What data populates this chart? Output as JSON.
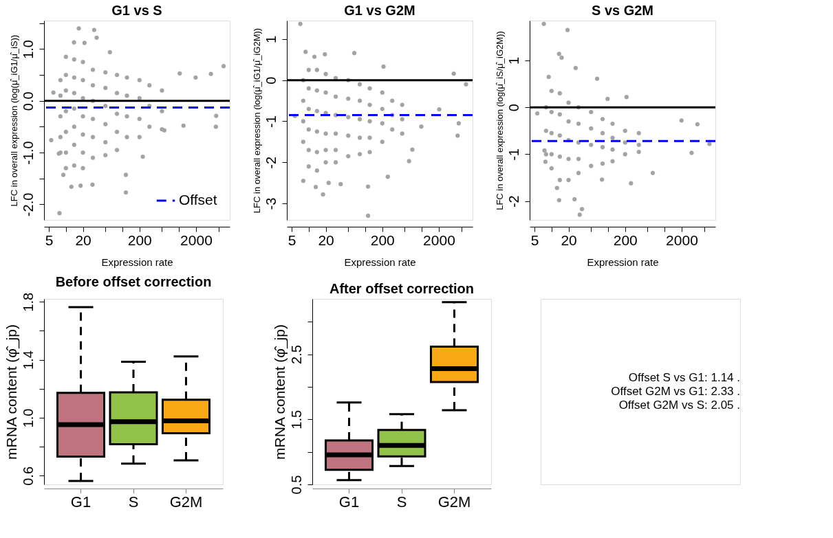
{
  "chart_data": [
    {
      "type": "scatter",
      "title": "G1 vs S",
      "xlabel": "Expression rate",
      "ylabel": "LFC in overall expression (log(μ̂_iG1/μ̂_iS))",
      "log": "x",
      "marker": "circle",
      "color": "#a3a3a3",
      "legend": "bottom right",
      "xlim": [
        4.1,
        7900
      ],
      "xticks": [
        5,
        {
          "value": 10,
          "label": null
        },
        20,
        {
          "value": 50,
          "label": null
        },
        {
          "value": 100,
          "label": null
        },
        200,
        {
          "value": 500,
          "label": null
        },
        {
          "value": 1000,
          "label": null
        },
        2000,
        {
          "value": 5000,
          "label": null
        }
      ],
      "ylim": [
        -2.3,
        1.55
      ],
      "yticks": [
        {
          "value": -2,
          "label": "-2.0"
        },
        {
          "value": -1.5,
          "label": null
        },
        {
          "value": -1,
          "label": "-1.0"
        },
        {
          "value": -0.5,
          "label": null
        },
        {
          "value": 0,
          "label": "0.0"
        },
        {
          "value": 0.5,
          "label": null
        },
        {
          "value": 1,
          "label": "1.0"
        },
        {
          "value": 1.5,
          "label": null
        }
      ],
      "ref_lines": [
        {
          "axis": "y",
          "value": 0,
          "color": "#000000",
          "line_style": "solid"
        },
        {
          "axis": "y",
          "value": -0.13,
          "color": "#0000ff",
          "line_style": "dashed",
          "label": "Offset"
        }
      ],
      "x": [
        8,
        8,
        8,
        8,
        8,
        10,
        10,
        10,
        10,
        10,
        10,
        10,
        14,
        14,
        14,
        14,
        14,
        14,
        14,
        20,
        20,
        20,
        20,
        20,
        20,
        20,
        30,
        30,
        30,
        30,
        30,
        30,
        50,
        50,
        50,
        50,
        50,
        50,
        80,
        80,
        80,
        80,
        80,
        120,
        120,
        120,
        120,
        200,
        200,
        200,
        200,
        300,
        300,
        300,
        500,
        500,
        500,
        16.9,
        31.6,
        35,
        13.9,
        21.3,
        60,
        6150,
        3670,
        1970,
        1030,
        6,
        5.5,
        7.7,
        12.5,
        18.2,
        29.5,
        115,
        115,
        229,
        4500,
        4550,
        1200,
        550,
        9,
        7.5
      ],
      "values": [
        0.4,
        0.1,
        -0.3,
        -0.7,
        -1.0,
        0.85,
        0.5,
        0.2,
        -0.2,
        -0.6,
        -1.0,
        -1.3,
        0.8,
        0.45,
        0.15,
        -0.15,
        -0.5,
        -0.85,
        -1.25,
        0.75,
        0.4,
        0.05,
        -0.3,
        -0.65,
        -1.0,
        -1.3,
        0.6,
        0.3,
        0.0,
        -0.35,
        -0.7,
        -1.1,
        0.55,
        0.25,
        -0.1,
        -0.45,
        -0.8,
        -1.05,
        0.5,
        0.15,
        -0.25,
        -0.6,
        -0.95,
        0.45,
        0.1,
        -0.3,
        -0.7,
        0.4,
        0.05,
        -0.35,
        -0.7,
        0.3,
        -0.1,
        -0.5,
        0.2,
        -0.2,
        -0.55,
        1.4,
        1.37,
        1.22,
        1.13,
        1.12,
        0.94,
        0.67,
        0.52,
        0.45,
        0.53,
        0.16,
        -0.76,
        -2.17,
        -1.66,
        -1.64,
        -1.62,
        -1.77,
        -1.43,
        -1.08,
        -0.5,
        -0.29,
        -0.48,
        -0.57,
        -1.43,
        -1.02
      ]
    },
    {
      "type": "scatter",
      "title": "G1 vs G2M",
      "xlabel": "Expression rate",
      "ylabel": "LFC in overall expression (log(μ̂_iG1/μ̂_iG2M))",
      "log": "x",
      "marker": "circle",
      "color": "#a3a3a3",
      "xlim": [
        4.1,
        7900
      ],
      "xticks": [
        5,
        {
          "value": 10,
          "label": null
        },
        20,
        {
          "value": 50,
          "label": null
        },
        {
          "value": 100,
          "label": null
        },
        200,
        {
          "value": 500,
          "label": null
        },
        {
          "value": 1000,
          "label": null
        },
        2000,
        {
          "value": 5000,
          "label": null
        }
      ],
      "ylim": [
        -3.4,
        1.45
      ],
      "yticks": [
        -3,
        -2,
        -1,
        0,
        1
      ],
      "ref_lines": [
        {
          "axis": "y",
          "value": 0,
          "color": "#000000",
          "line_style": "solid"
        },
        {
          "axis": "y",
          "value": -0.85,
          "color": "#0000ff",
          "line_style": "dashed"
        }
      ],
      "x": [
        8,
        8,
        8,
        8,
        10,
        10,
        10,
        10,
        10,
        10,
        14,
        14,
        14,
        14,
        14,
        14,
        20,
        20,
        20,
        20,
        20,
        20,
        30,
        30,
        30,
        30,
        30,
        30,
        50,
        50,
        50,
        50,
        50,
        80,
        80,
        80,
        80,
        80,
        120,
        120,
        120,
        120,
        120,
        200,
        200,
        200,
        200,
        300,
        300,
        300,
        450,
        450,
        450,
        7.1,
        8.8,
        64,
        19.3,
        12.6,
        210,
        3670,
        6050,
        4500,
        4300,
        595,
        250,
        112,
        112,
        17.9,
        13.3,
        8.0,
        22.5,
        36.7,
        680,
        2030,
        980,
        5.7
      ],
      "values": [
        0.0,
        -0.5,
        -1.0,
        -1.5,
        0.25,
        -0.2,
        -0.7,
        -1.2,
        -1.7,
        -2.1,
        0.25,
        -0.25,
        -0.75,
        -1.25,
        -1.75,
        -2.2,
        0.15,
        -0.3,
        -0.8,
        -1.3,
        -1.7,
        -2.0,
        0.05,
        -0.4,
        -0.85,
        -1.3,
        -1.7,
        -2.0,
        0.0,
        -0.45,
        -0.9,
        -1.35,
        -1.85,
        -0.1,
        -0.5,
        -0.95,
        -1.4,
        -1.8,
        -0.2,
        -0.6,
        -1.0,
        -1.4,
        -1.75,
        -0.3,
        -0.7,
        -1.05,
        -1.5,
        -0.5,
        -0.85,
        -1.2,
        -0.6,
        -0.95,
        -1.3,
        1.37,
        0.69,
        0.66,
        0.63,
        0.57,
        0.33,
        0.16,
        -0.1,
        -1.05,
        -1.35,
        -1.97,
        -2.35,
        -2.59,
        -3.3,
        -2.78,
        -2.6,
        -2.45,
        -2.5,
        -2.53,
        -1.69,
        -0.71,
        -1.13,
        -0.87
      ]
    },
    {
      "type": "scatter",
      "title": "S vs G2M",
      "xlabel": "Expression rate",
      "ylabel": "LFC in overall expression (log(μ̂_iS/μ̂_iG2M))",
      "log": "x",
      "marker": "circle",
      "color": "#a3a3a3",
      "xlim": [
        4.1,
        7900
      ],
      "xticks": [
        5,
        {
          "value": 10,
          "label": null
        },
        20,
        {
          "value": 50,
          "label": null
        },
        {
          "value": 100,
          "label": null
        },
        200,
        {
          "value": 500,
          "label": null
        },
        {
          "value": 1000,
          "label": null
        },
        2000,
        {
          "value": 5000,
          "label": null
        }
      ],
      "ylim": [
        -2.4,
        1.85
      ],
      "yticks": [
        -2,
        -1,
        0,
        1
      ],
      "ref_lines": [
        {
          "axis": "y",
          "value": 0,
          "color": "#000000",
          "line_style": "solid"
        },
        {
          "axis": "y",
          "value": -0.72,
          "color": "#0000ff",
          "line_style": "dashed"
        }
      ],
      "x": [
        8,
        8,
        8,
        10,
        10,
        10,
        10,
        10,
        14,
        14,
        14,
        14,
        14,
        20,
        20,
        20,
        20,
        20,
        30,
        30,
        30,
        30,
        30,
        50,
        50,
        50,
        50,
        80,
        80,
        80,
        80,
        120,
        120,
        120,
        120,
        200,
        200,
        200,
        350,
        350,
        350,
        7.3,
        19.2,
        13.6,
        15.1,
        26.7,
        64,
        8.9,
        212,
        98,
        3800,
        1990,
        6200,
        3000,
        617,
        254,
        31.5,
        34.5,
        25.5,
        13.6,
        12.5,
        7.8,
        5.6,
        7.5,
        78
      ],
      "values": [
        0.0,
        -0.5,
        -1.0,
        0.35,
        -0.1,
        -0.55,
        -1.0,
        -1.3,
        0.3,
        -0.15,
        -0.6,
        -1.05,
        -1.55,
        0.1,
        -0.3,
        -0.7,
        -1.1,
        -1.55,
        0.0,
        -0.35,
        -0.75,
        -1.1,
        -1.4,
        -0.1,
        -0.45,
        -0.8,
        -1.25,
        -0.25,
        -0.55,
        -0.85,
        -1.2,
        -0.35,
        -0.65,
        -0.9,
        -1.15,
        -0.5,
        -0.75,
        -1.0,
        -0.55,
        -0.8,
        -0.95,
        1.78,
        1.65,
        1.14,
        1.06,
        0.84,
        0.61,
        0.65,
        0.22,
        0.18,
        -0.36,
        -0.28,
        -0.78,
        -0.97,
        -1.4,
        -1.62,
        -2.29,
        -2.17,
        -1.96,
        -1.98,
        -1.72,
        -1.16,
        -0.13,
        -0.92,
        -1.54
      ]
    },
    {
      "type": "box",
      "title": "Before offset correction",
      "ylabel": "mRNA content (φ̂_jp)",
      "categories": [
        "G1",
        "S",
        "G2M"
      ],
      "colors": [
        "#c07480",
        "#92c24a",
        "#f9a915"
      ],
      "ylim": [
        0.54,
        1.82
      ],
      "yticks": [
        0.6,
        {
          "value": 0.8,
          "label": null
        },
        {
          "value": 1.0,
          "label": "1.0"
        },
        {
          "value": 1.2,
          "label": null
        },
        1.4,
        {
          "value": 1.6,
          "label": null
        },
        1.8
      ],
      "boxes": [
        {
          "low": 0.564,
          "q1": 0.732,
          "median": 0.953,
          "q3": 1.172,
          "high": 1.763
        },
        {
          "low": 0.683,
          "q1": 0.817,
          "median": 0.973,
          "q3": 1.175,
          "high": 1.386
        },
        {
          "low": 0.706,
          "q1": 0.893,
          "median": 0.979,
          "q3": 1.124,
          "high": 1.423
        }
      ]
    },
    {
      "type": "box",
      "title": "After offset correction",
      "ylabel": "mRNA content (φ̂_jp)",
      "categories": [
        "G1",
        "S",
        "G2M"
      ],
      "colors": [
        "#c07480",
        "#92c24a",
        "#f9a915"
      ],
      "ylim": [
        0.5,
        3.35
      ],
      "yticks": [
        0.5,
        {
          "value": 1.0,
          "label": null
        },
        1.5,
        {
          "value": 2.0,
          "label": null
        },
        2.5,
        {
          "value": 3.0,
          "label": null
        }
      ],
      "boxes": [
        {
          "low": 0.565,
          "q1": 0.725,
          "median": 0.954,
          "q3": 1.176,
          "high": 1.76
        },
        {
          "low": 0.783,
          "q1": 0.93,
          "median": 1.1,
          "q3": 1.336,
          "high": 1.578
        },
        {
          "low": 1.64,
          "q1": 2.073,
          "median": 2.278,
          "q3": 2.616,
          "high": 3.3
        }
      ]
    },
    {
      "type": "other",
      "annotations": [
        "Offset S vs G1: 1.14 .",
        "Offset G2M vs G1: 2.33 .",
        "Offset G2M vs S: 2.05 ."
      ]
    }
  ]
}
